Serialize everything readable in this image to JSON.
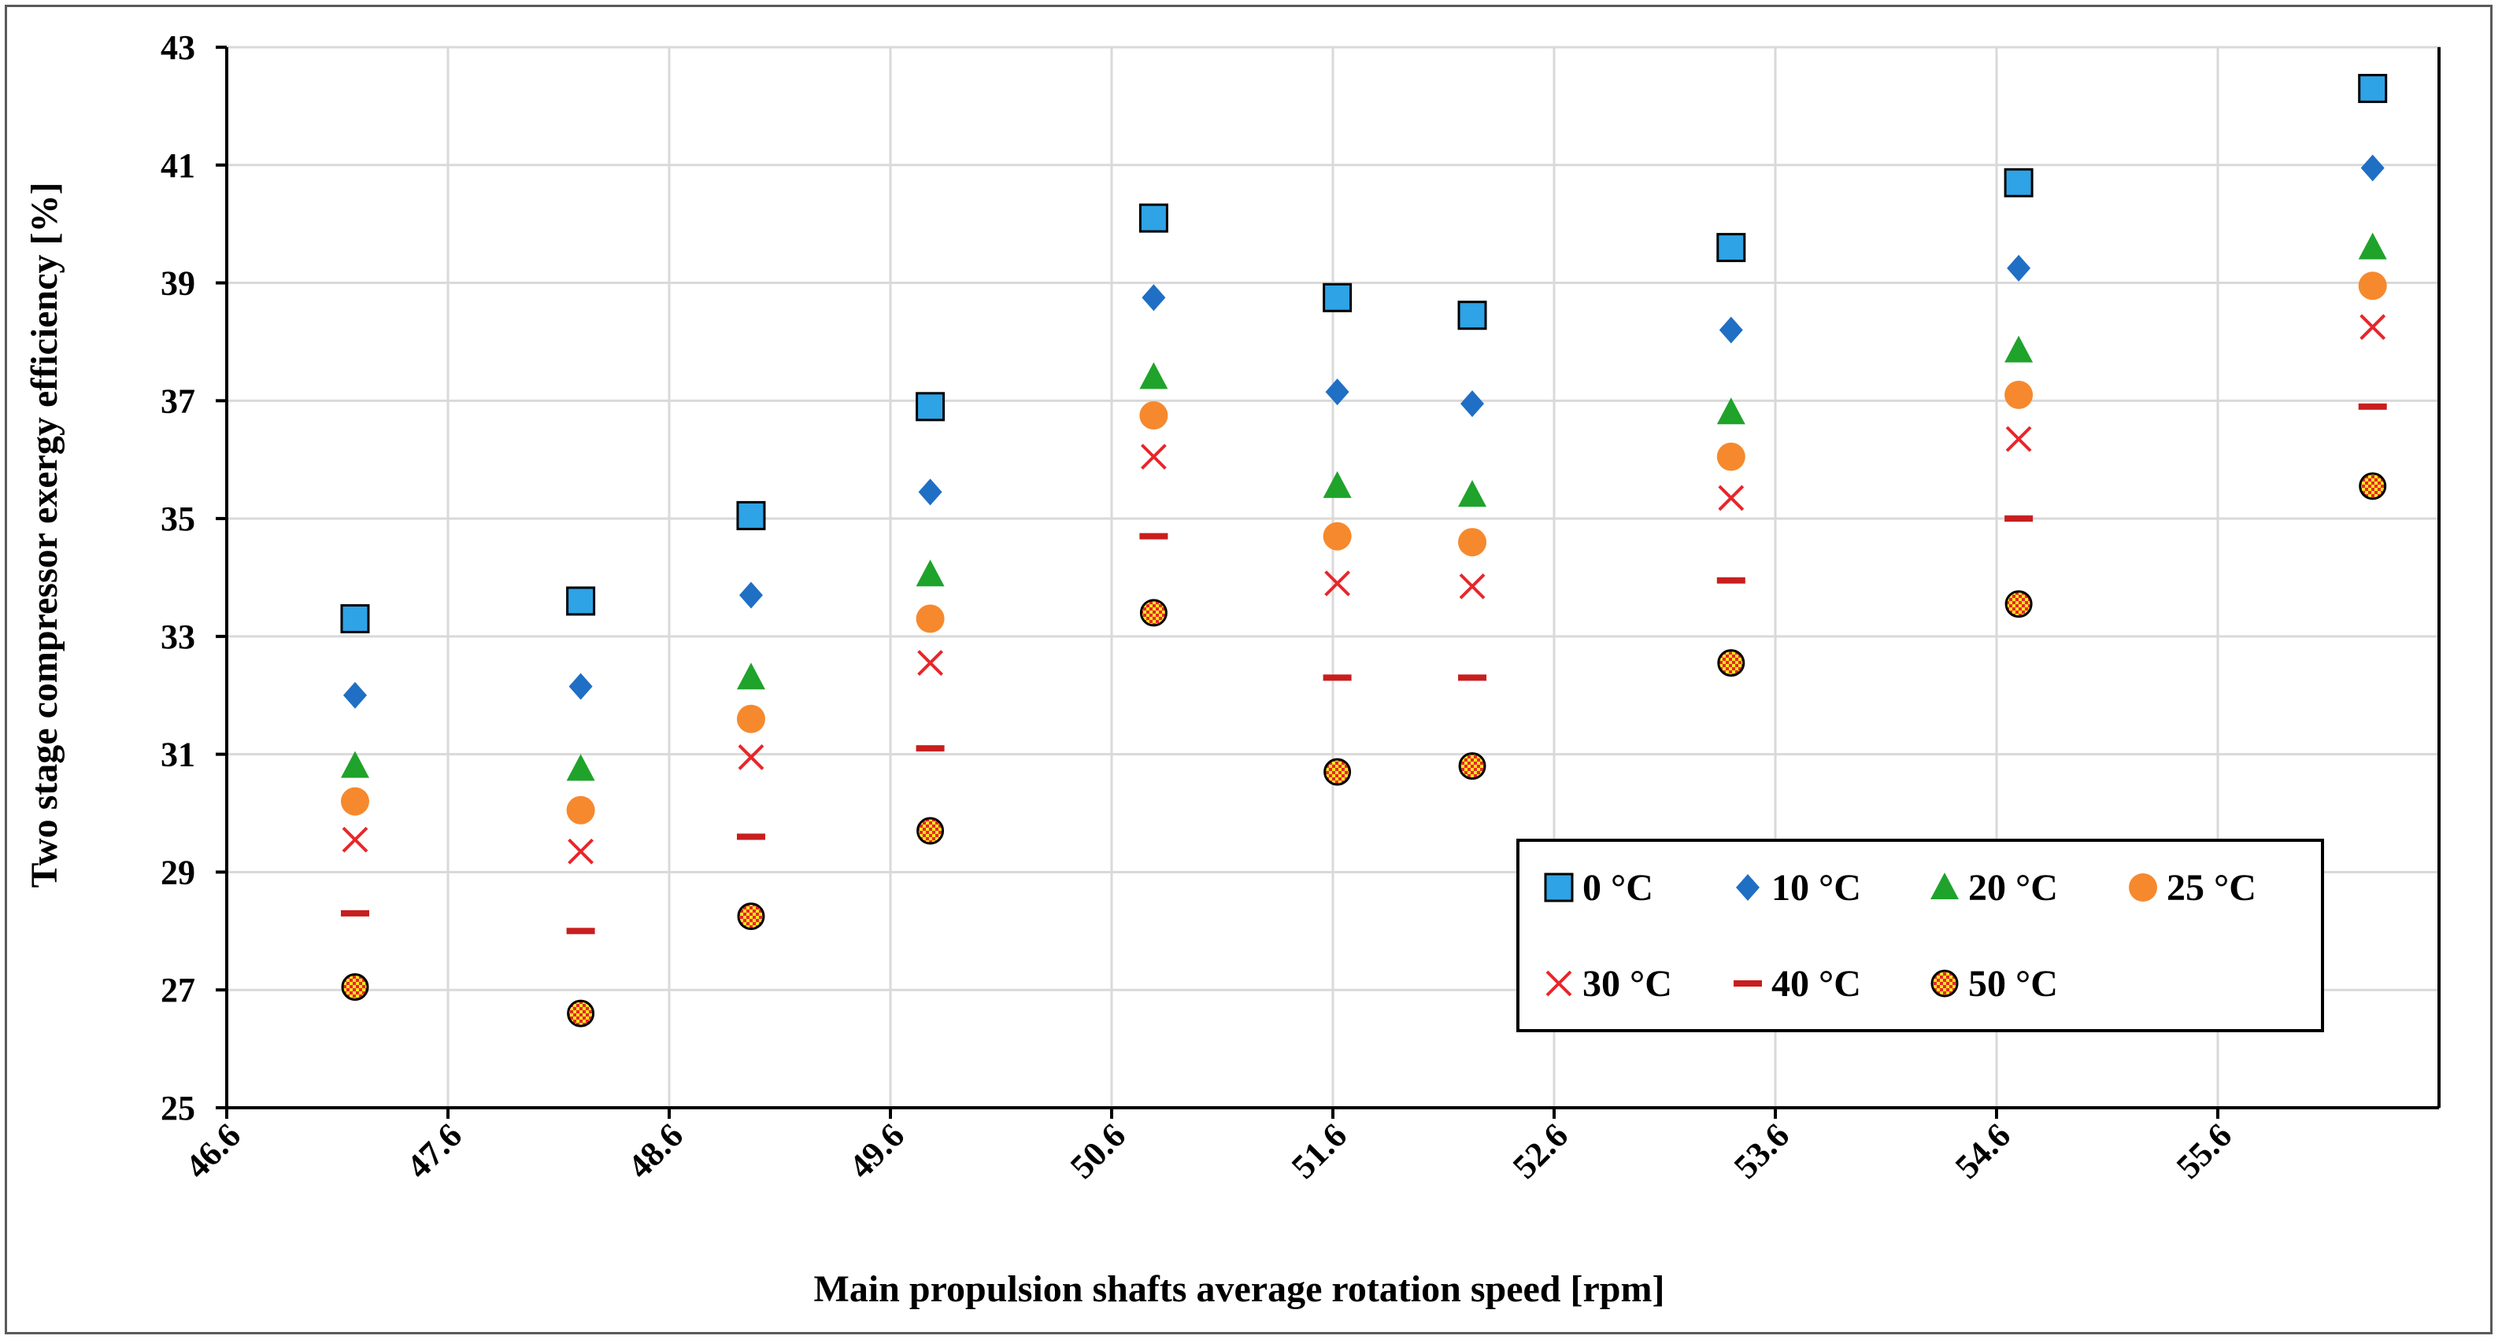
{
  "chart_data": {
    "type": "scatter",
    "title": "",
    "xlabel": "Main propulsion shafts average rotation speed [rpm]",
    "ylabel": "Two stage compressor exergy efficiency [%]",
    "xlim": [
      46.6,
      56.6
    ],
    "ylim": [
      25,
      43
    ],
    "x_ticks": [
      "46.6",
      "47.6",
      "48.6",
      "49.6",
      "50.6",
      "51.6",
      "52.6",
      "53.6",
      "54.6",
      "55.6"
    ],
    "y_ticks": [
      "25",
      "27",
      "29",
      "31",
      "33",
      "35",
      "37",
      "39",
      "41",
      "43"
    ],
    "grid": true,
    "legend_position": "bottom-right",
    "x": [
      47.18,
      48.2,
      48.97,
      49.78,
      50.79,
      51.62,
      52.23,
      53.4,
      54.7,
      56.3
    ],
    "series": [
      {
        "name": "0 °C",
        "marker": "square",
        "color": "#2EA3E6",
        "values": [
          33.3,
          33.6,
          35.05,
          36.9,
          40.1,
          38.75,
          38.45,
          39.6,
          40.7,
          42.3
        ]
      },
      {
        "name": "10 °C",
        "marker": "diamond",
        "color": "#1F6FC4",
        "values": [
          32.0,
          32.15,
          33.7,
          35.45,
          38.75,
          37.15,
          36.95,
          38.2,
          39.25,
          40.95
        ]
      },
      {
        "name": "20 °C",
        "marker": "triangle",
        "color": "#1FA32B",
        "values": [
          30.8,
          30.75,
          32.3,
          34.05,
          37.4,
          35.55,
          35.4,
          36.8,
          37.85,
          39.6
        ]
      },
      {
        "name": "25 °C",
        "marker": "circle",
        "color": "#F6892D",
        "values": [
          30.2,
          30.05,
          31.6,
          33.3,
          36.75,
          34.7,
          34.6,
          36.05,
          37.1,
          38.95
        ]
      },
      {
        "name": "30 °C",
        "marker": "x",
        "color": "#E8262B",
        "values": [
          29.55,
          29.35,
          30.95,
          32.55,
          36.05,
          33.9,
          33.85,
          35.35,
          36.35,
          38.25
        ]
      },
      {
        "name": "40 °C",
        "marker": "dash",
        "color": "#C81E1E",
        "values": [
          28.3,
          28.0,
          29.6,
          31.1,
          34.7,
          32.3,
          32.3,
          33.95,
          35.0,
          36.9
        ]
      },
      {
        "name": "50 °C",
        "marker": "checker",
        "color": "#E8262B",
        "values": [
          27.05,
          26.6,
          28.25,
          29.7,
          33.4,
          30.7,
          30.8,
          32.55,
          33.55,
          35.55
        ]
      }
    ]
  }
}
